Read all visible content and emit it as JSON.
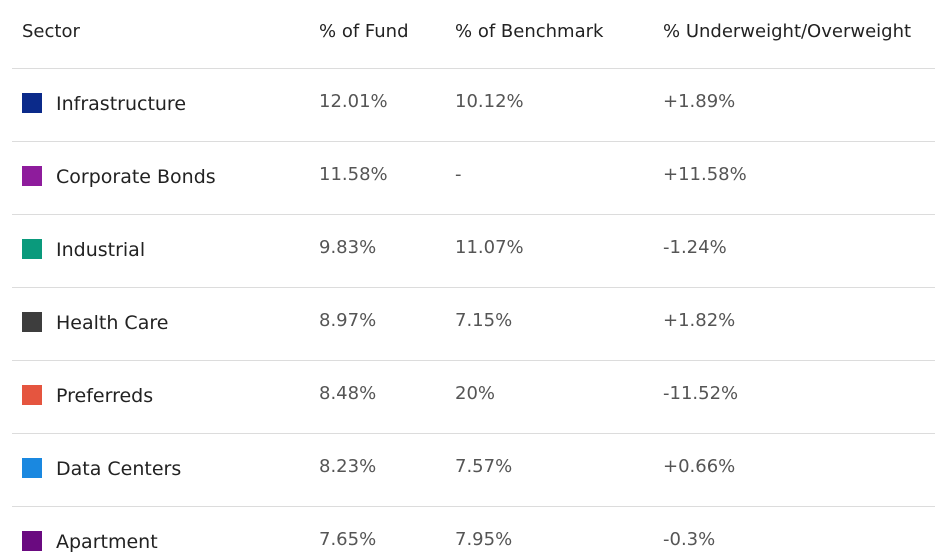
{
  "table": {
    "headers": [
      "Sector",
      "% of Fund",
      "% of Benchmark",
      "% Underweight/Overweight"
    ],
    "rows": [
      {
        "color": "#0b2a8a",
        "cells": [
          "Infrastructure",
          "12.01%",
          "10.12%",
          "+1.89%"
        ]
      },
      {
        "color": "#8e1c9c",
        "cells": [
          "Corporate Bonds",
          "11.58%",
          "-",
          "+11.58%"
        ]
      },
      {
        "color": "#0a9a7c",
        "cells": [
          "Industrial",
          "9.83%",
          "11.07%",
          "-1.24%"
        ]
      },
      {
        "color": "#3d3d3d",
        "cells": [
          "Health Care",
          "8.97%",
          "7.15%",
          "+1.82%"
        ]
      },
      {
        "color": "#e5553f",
        "cells": [
          "Preferreds",
          "8.48%",
          "20%",
          "-11.52%"
        ]
      },
      {
        "color": "#1a88e0",
        "cells": [
          "Data Centers",
          "8.23%",
          "7.57%",
          "+0.66%"
        ]
      },
      {
        "color": "#6a0a80",
        "cells": [
          "Apartment",
          "7.65%",
          "7.95%",
          "-0.3%"
        ]
      }
    ]
  }
}
